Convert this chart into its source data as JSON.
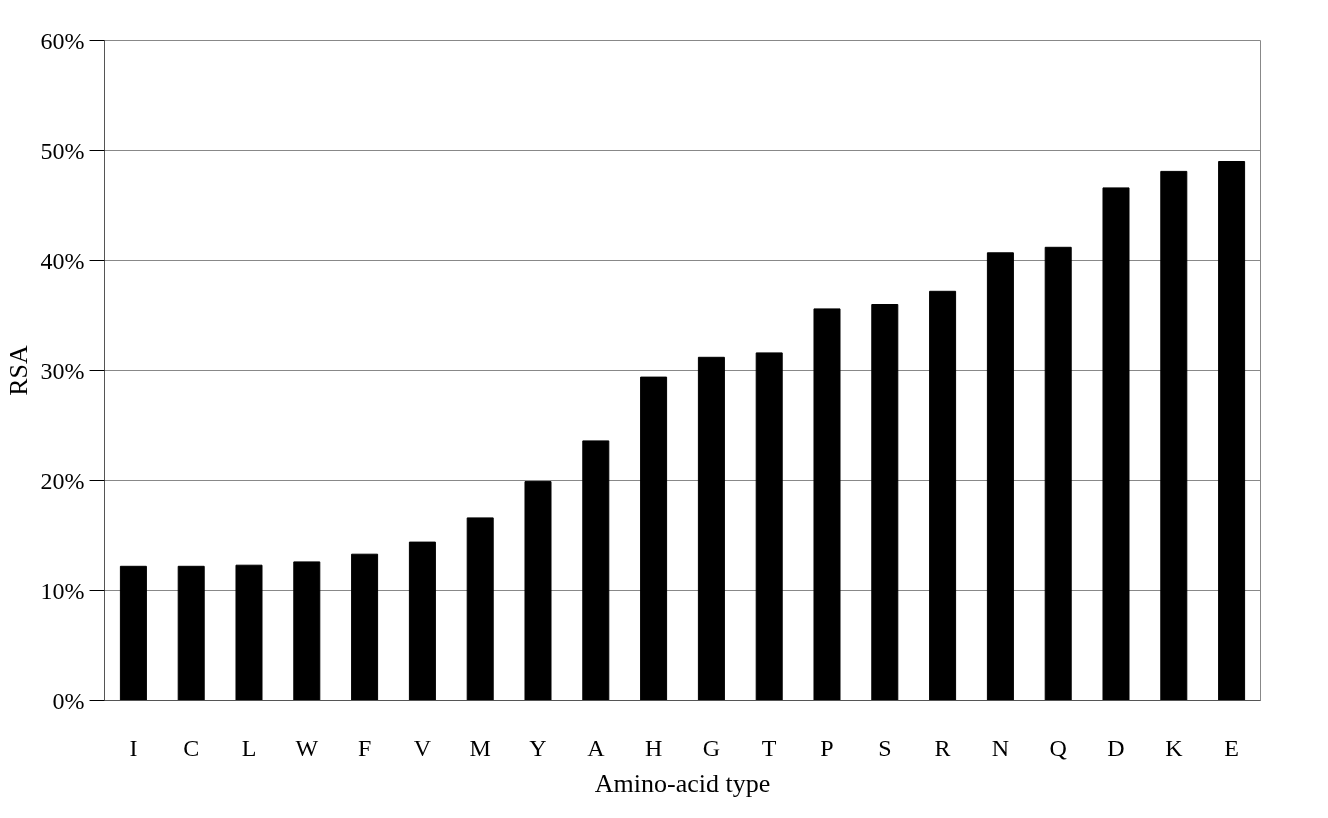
{
  "chart_data": {
    "type": "bar",
    "xlabel": "Amino-acid type",
    "ylabel": "RSA",
    "categories": [
      "I",
      "C",
      "L",
      "W",
      "F",
      "V",
      "M",
      "Y",
      "A",
      "H",
      "G",
      "T",
      "P",
      "S",
      "R",
      "N",
      "Q",
      "D",
      "K",
      "E"
    ],
    "values": [
      12.2,
      12.2,
      12.3,
      12.6,
      13.3,
      14.4,
      16.6,
      19.9,
      23.6,
      29.4,
      31.2,
      31.6,
      35.6,
      36.0,
      37.2,
      40.7,
      41.2,
      46.6,
      48.1,
      49.0
    ],
    "color": "#000000",
    "ylim": [
      0,
      60
    ],
    "yticks": [
      {
        "value": 0,
        "label": "0%"
      },
      {
        "value": 10,
        "label": "10%"
      },
      {
        "value": 20,
        "label": "20%"
      },
      {
        "value": 30,
        "label": "30%"
      },
      {
        "value": 40,
        "label": "40%"
      },
      {
        "value": 50,
        "label": "50%"
      },
      {
        "value": 60,
        "label": "60%"
      }
    ],
    "grid": "y"
  }
}
